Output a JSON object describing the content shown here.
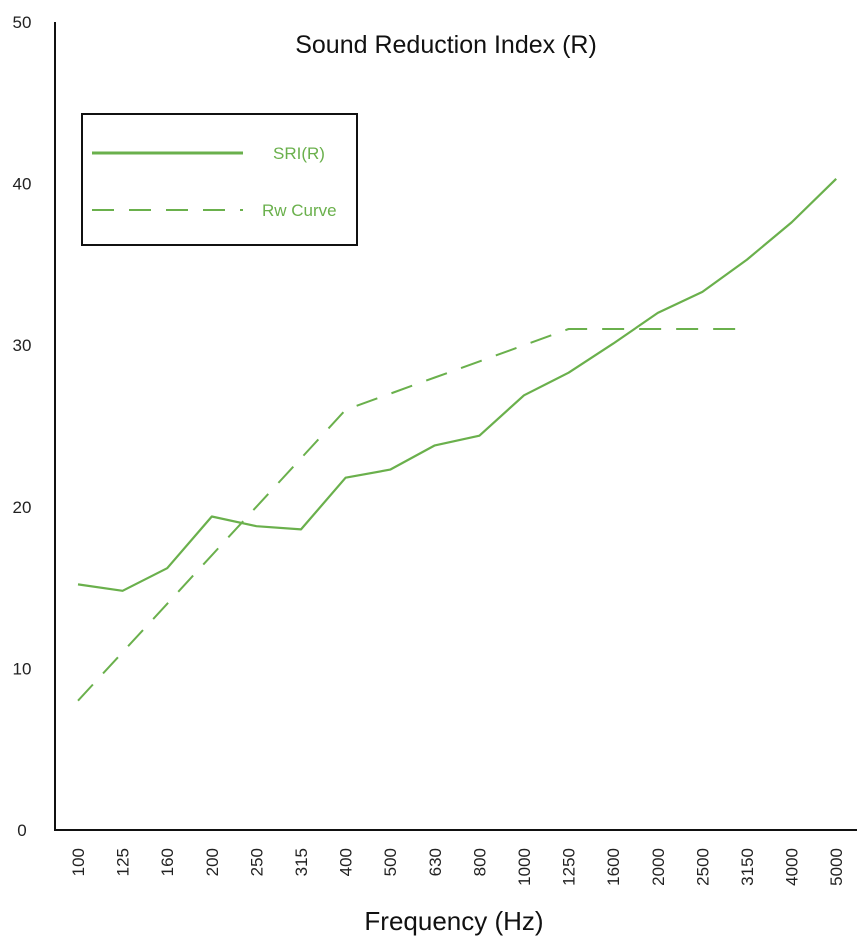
{
  "chart_data": {
    "type": "line",
    "title": "Sound Reduction Index (R)",
    "xlabel": "Frequency (Hz)",
    "ylabel": "",
    "ylim": [
      0,
      50
    ],
    "yticks": [
      "0",
      "10",
      "20",
      "30",
      "40",
      "50"
    ],
    "grid": false,
    "legend_position": "top-left",
    "categories": [
      "100",
      "125",
      "160",
      "200",
      "250",
      "315",
      "400",
      "500",
      "630",
      "800",
      "1000",
      "1250",
      "1600",
      "2000",
      "2500",
      "3150",
      "4000",
      "5000"
    ],
    "series": [
      {
        "name": "SRI(R)",
        "style": "solid",
        "color": "#6ab04c",
        "values": [
          15.2,
          14.8,
          16.2,
          19.4,
          18.8,
          18.6,
          21.8,
          22.3,
          23.8,
          24.4,
          26.9,
          28.3,
          30.1,
          32.0,
          33.3,
          35.3,
          37.6,
          40.3
        ]
      },
      {
        "name": "Rw Curve",
        "style": "dashed",
        "color": "#6ab04c",
        "values": [
          8,
          11,
          14,
          17,
          20,
          23,
          26,
          27,
          28,
          29,
          30,
          31,
          31,
          31,
          31,
          31,
          null,
          null
        ]
      }
    ]
  }
}
